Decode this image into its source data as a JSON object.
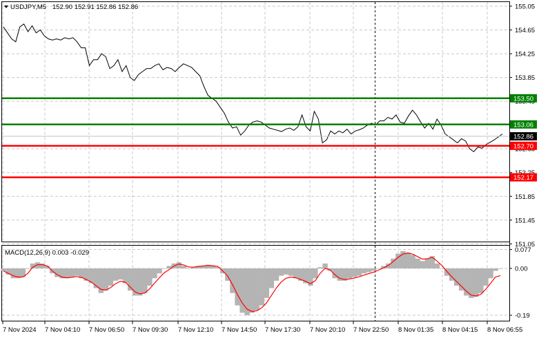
{
  "header": {
    "symbol": "USDJPY,M5",
    "ohlc": "152.90 152.91 152.86 152.86"
  },
  "macd_header": {
    "label": "MACD(12,26,9) 0.003 -0.029"
  },
  "colors": {
    "grid": "#c8c8c8",
    "price_line": "#000000",
    "support": "#ff0000",
    "resistance": "#008000",
    "macd_hist": "#b4b4b4",
    "signal": "#ff0000",
    "bg": "#ffffff"
  },
  "chart_data": [
    {
      "type": "line",
      "title": "USDJPY,M5",
      "x_tick_labels": [
        "7 Nov 2024",
        "7 Nov 04:10",
        "7 Nov 06:50",
        "7 Nov 09:30",
        "7 Nov 12:10",
        "7 Nov 14:50",
        "7 Nov 17:30",
        "7 Nov 20:10",
        "7 Nov 22:50",
        "8 Nov 01:35",
        "8 Nov 04:15",
        "8 Nov 06:55"
      ],
      "y_tick_labels": [
        "155.05",
        "154.65",
        "154.25",
        "153.85",
        "153.45",
        "153.05",
        "152.65",
        "152.25",
        "151.85",
        "151.45",
        "151.05"
      ],
      "ylim": [
        151.0,
        155.1
      ],
      "grid": true,
      "series": [
        {
          "values": [
            154.7,
            154.6,
            154.5,
            154.45,
            154.7,
            154.75,
            154.62,
            154.72,
            154.6,
            154.65,
            154.55,
            154.5,
            154.48,
            154.5,
            154.48,
            154.52,
            154.5,
            154.52,
            154.45,
            154.35,
            154.35,
            154.05,
            154.15,
            154.15,
            154.25,
            154.2,
            154.0,
            154.05,
            154.15,
            153.95,
            154.05,
            153.85,
            153.8,
            153.9,
            153.95,
            154.0,
            154.0,
            154.05,
            154.08,
            153.98,
            154.02,
            154.0,
            153.95,
            154.02,
            154.08,
            154.05,
            154.02,
            153.95,
            153.88,
            153.7,
            153.55,
            153.5,
            153.45,
            153.35,
            153.25,
            153.1,
            153.0,
            153.02,
            152.88,
            152.95,
            153.05,
            153.1,
            153.12,
            153.1,
            153.05,
            153.0,
            152.98,
            152.96,
            152.94,
            152.98,
            153.0,
            152.96,
            153.02,
            153.22,
            153.02,
            152.95,
            153.28,
            153.15,
            152.75,
            152.8,
            152.95,
            152.9,
            152.95,
            152.92,
            152.98,
            152.9,
            152.95,
            152.97,
            153.0,
            153.05,
            153.08,
            153.05,
            153.12,
            153.12,
            153.18,
            153.15,
            153.22,
            153.1,
            153.08,
            153.2,
            153.3,
            153.22,
            153.1,
            153.0,
            153.08,
            152.98,
            153.15,
            153.05,
            152.9,
            152.85,
            152.8,
            152.75,
            152.82,
            152.78,
            152.65,
            152.6,
            152.68,
            152.66,
            152.72,
            152.76,
            152.8,
            152.85,
            152.9
          ]
        }
      ],
      "levels": [
        {
          "label": "153.50",
          "value": 153.5,
          "color": "green"
        },
        {
          "label": "153.06",
          "value": 153.06,
          "color": "green"
        },
        {
          "label": "152.70",
          "value": 152.7,
          "color": "red"
        },
        {
          "label": "152.17",
          "value": 152.17,
          "color": "red"
        }
      ],
      "current_price": {
        "label": "152.86",
        "value": 152.86
      }
    },
    {
      "type": "bar",
      "title": "MACD(12,26,9) 0.003 -0.029",
      "y_tick_labels": [
        "0.077",
        "0.00",
        "-0.19"
      ],
      "ylim": [
        -0.21,
        0.09
      ],
      "series": [
        {
          "name": "MACD",
          "values": [
            -0.01,
            -0.025,
            -0.04,
            -0.04,
            -0.035,
            0.0,
            0.02,
            0.025,
            0.02,
            0.01,
            -0.02,
            -0.035,
            -0.04,
            -0.04,
            -0.035,
            -0.03,
            -0.04,
            -0.05,
            -0.06,
            -0.08,
            -0.1,
            -0.09,
            -0.07,
            -0.05,
            -0.045,
            -0.06,
            -0.09,
            -0.11,
            -0.11,
            -0.1,
            -0.07,
            -0.04,
            -0.02,
            0.0,
            0.01,
            0.02,
            0.025,
            0.01,
            0.0,
            0.005,
            0.01,
            0.01,
            0.015,
            0.01,
            0.005,
            -0.02,
            -0.05,
            -0.1,
            -0.15,
            -0.18,
            -0.19,
            -0.18,
            -0.17,
            -0.15,
            -0.12,
            -0.08,
            -0.05,
            -0.03,
            -0.025,
            -0.03,
            -0.04,
            -0.05,
            -0.06,
            -0.07,
            -0.04,
            0.005,
            0.02,
            -0.01,
            -0.04,
            -0.05,
            -0.05,
            -0.04,
            -0.035,
            -0.03,
            -0.02,
            -0.015,
            -0.01,
            0.0,
            0.01,
            0.02,
            0.04,
            0.06,
            0.07,
            0.065,
            0.055,
            0.04,
            0.03,
            0.04,
            0.05,
            0.02,
            0.0,
            -0.03,
            -0.05,
            -0.07,
            -0.09,
            -0.11,
            -0.12,
            -0.115,
            -0.1,
            -0.07,
            -0.04,
            -0.01,
            0.0
          ]
        },
        {
          "name": "Signal",
          "values": [
            -0.01,
            -0.02,
            -0.03,
            -0.035,
            -0.035,
            -0.02,
            0.005,
            0.015,
            0.015,
            0.01,
            -0.01,
            -0.025,
            -0.035,
            -0.038,
            -0.036,
            -0.033,
            -0.036,
            -0.045,
            -0.055,
            -0.07,
            -0.085,
            -0.088,
            -0.078,
            -0.062,
            -0.052,
            -0.056,
            -0.075,
            -0.095,
            -0.103,
            -0.1,
            -0.083,
            -0.06,
            -0.038,
            -0.018,
            -0.005,
            0.01,
            0.018,
            0.014,
            0.006,
            0.005,
            0.008,
            0.01,
            0.012,
            0.011,
            0.008,
            -0.01,
            -0.03,
            -0.065,
            -0.105,
            -0.14,
            -0.165,
            -0.175,
            -0.172,
            -0.16,
            -0.14,
            -0.11,
            -0.08,
            -0.055,
            -0.04,
            -0.035,
            -0.038,
            -0.045,
            -0.052,
            -0.062,
            -0.05,
            -0.02,
            0.0,
            -0.005,
            -0.025,
            -0.04,
            -0.045,
            -0.043,
            -0.039,
            -0.034,
            -0.027,
            -0.021,
            -0.015,
            -0.007,
            0.002,
            0.012,
            0.028,
            0.045,
            0.058,
            0.062,
            0.058,
            0.048,
            0.038,
            0.039,
            0.045,
            0.03,
            0.012,
            -0.012,
            -0.033,
            -0.053,
            -0.072,
            -0.092,
            -0.108,
            -0.112,
            -0.105,
            -0.085,
            -0.06,
            -0.035,
            -0.029
          ]
        }
      ]
    }
  ]
}
